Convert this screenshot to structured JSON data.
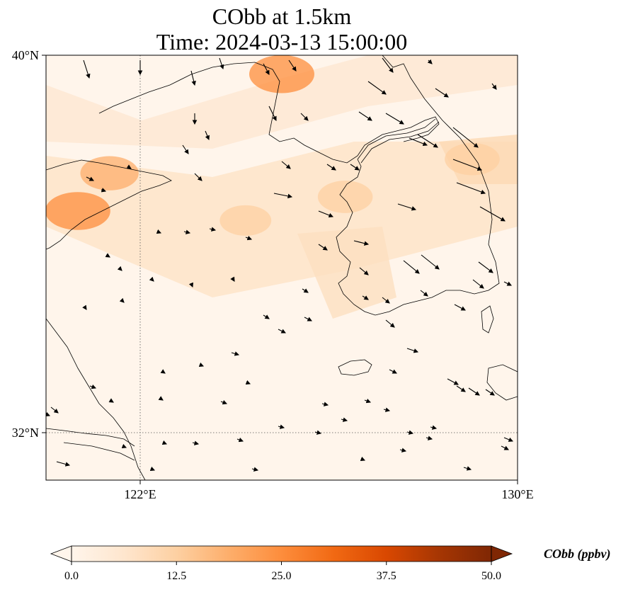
{
  "title": {
    "line1": "CObb at 1.5km",
    "line2": "Time: 2024-03-13 15:00:00"
  },
  "map": {
    "lon_range": [
      119.6,
      130.0
    ],
    "lat_range": [
      31.0,
      40.0
    ],
    "y_ticks": [
      {
        "value": 40,
        "label": "40°N"
      },
      {
        "value": 32,
        "label": "32°N"
      }
    ],
    "x_ticks": [
      {
        "value": 122,
        "label": "122°E"
      },
      {
        "value": 130,
        "label": "130°E"
      }
    ],
    "gridlines": {
      "lon": 122,
      "lat": 32,
      "style": "dotted"
    },
    "coastlines": "shown",
    "wind_vectors": "shown"
  },
  "colorbar": {
    "title": "CObb (ppbv)",
    "min": 0.0,
    "max": 50.0,
    "ticks": [
      "0.0",
      "12.5",
      "25.0",
      "37.5",
      "50.0"
    ],
    "extend": "both",
    "colors": [
      "#fff5eb",
      "#fee6ce",
      "#fdd0a2",
      "#fdae6b",
      "#fd8d3c",
      "#f16913",
      "#d94801",
      "#a63603",
      "#7f2704"
    ]
  },
  "chart_data": {
    "type": "heatmap",
    "variable": "CObb",
    "units": "ppbv",
    "level": "1.5km",
    "time": "2024-03-13 15:00:00",
    "xlim": [
      119.6,
      130.0
    ],
    "ylim": [
      31.0,
      40.0
    ],
    "hotspots": [
      {
        "lon": 124.8,
        "lat": 39.6,
        "value": 20
      },
      {
        "lon": 120.3,
        "lat": 36.7,
        "value": 20
      },
      {
        "lon": 121.0,
        "lat": 37.5,
        "value": 14
      },
      {
        "lon": 129.0,
        "lat": 37.8,
        "value": 11
      },
      {
        "lon": 126.2,
        "lat": 37.0,
        "value": 11
      },
      {
        "lon": 124.0,
        "lat": 36.5,
        "value": 8
      }
    ],
    "colorbar_range": [
      0.0,
      50.0
    ]
  }
}
